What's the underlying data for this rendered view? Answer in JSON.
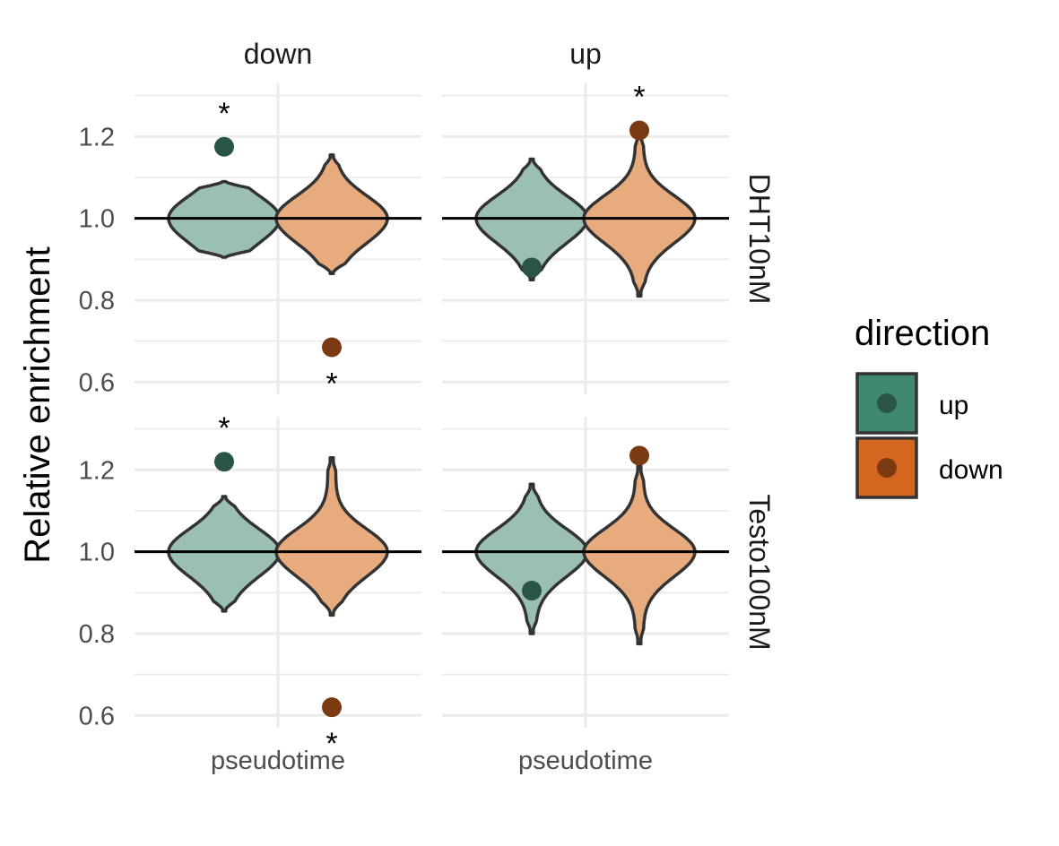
{
  "chart_data": {
    "type": "violin",
    "ylabel": "Relative enrichment",
    "xlabel": "",
    "x_tick_label": "pseudotime",
    "col_facets": [
      "down",
      "up"
    ],
    "row_facets": [
      "DHT10nM",
      "Testo100nM"
    ],
    "yticks": [
      "0.6",
      "0.8",
      "1.0",
      "1.2"
    ],
    "ylim": [
      0.57,
      1.33
    ],
    "reference_line": 1.0,
    "grid": true,
    "legend": {
      "title": "direction",
      "position": "right",
      "items": [
        {
          "label": "up",
          "fill": "#3f8a6e",
          "point": "#2a5445"
        },
        {
          "label": "down",
          "fill": "#d4661f",
          "point": "#7b3a12"
        }
      ]
    },
    "colors": {
      "up_violin": "#9bc0b2",
      "down_violin": "#e8ab7e",
      "up_point": "#2a5445",
      "down_point": "#7b3a12",
      "outline": "#333333"
    },
    "panels": [
      {
        "row": "DHT10nM",
        "col": "down",
        "violins": [
          {
            "direction": "up",
            "min": 0.905,
            "max": 1.09,
            "point": 1.175,
            "significant": true,
            "star": "above"
          },
          {
            "direction": "down",
            "min": 0.865,
            "max": 1.155,
            "point": 0.685,
            "significant": true,
            "star": "below"
          }
        ]
      },
      {
        "row": "DHT10nM",
        "col": "up",
        "violins": [
          {
            "direction": "up",
            "min": 0.85,
            "max": 1.145,
            "point": 0.88,
            "significant": false
          },
          {
            "direction": "down",
            "min": 0.81,
            "max": 1.21,
            "point": 1.215,
            "significant": true,
            "star": "above"
          }
        ]
      },
      {
        "row": "Testo100nM",
        "col": "down",
        "violins": [
          {
            "direction": "up",
            "min": 0.855,
            "max": 1.135,
            "point": 1.22,
            "significant": true,
            "star": "above"
          },
          {
            "direction": "down",
            "min": 0.845,
            "max": 1.23,
            "point": 0.62,
            "significant": true,
            "star": "below"
          }
        ]
      },
      {
        "row": "Testo100nM",
        "col": "up",
        "violins": [
          {
            "direction": "up",
            "min": 0.8,
            "max": 1.165,
            "point": 0.905,
            "significant": false
          },
          {
            "direction": "down",
            "min": 0.775,
            "max": 1.21,
            "point": 1.235,
            "significant": false
          }
        ]
      }
    ],
    "significance_symbol": "*"
  }
}
